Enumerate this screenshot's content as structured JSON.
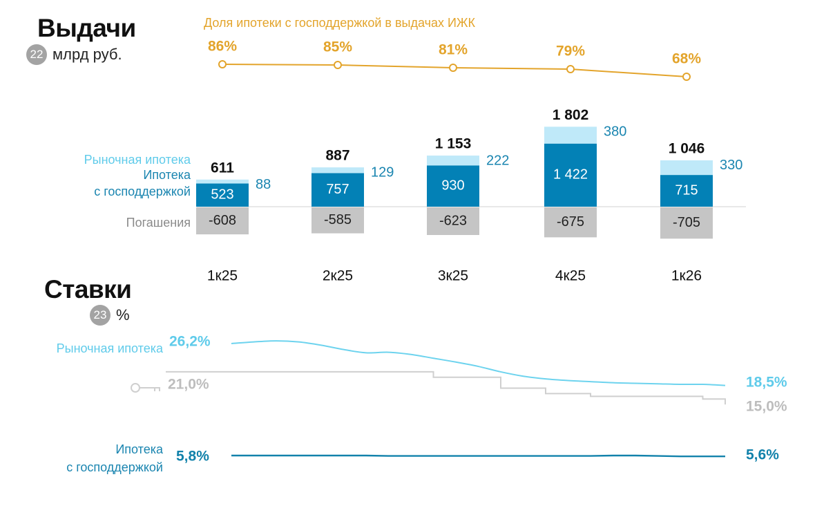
{
  "issuance": {
    "title": "Выдачи",
    "badge": "22",
    "unit": "млрд руб."
  },
  "rates": {
    "title": "Ставки",
    "badge": "23",
    "unit": "%"
  },
  "colors": {
    "market": "#bfe9f9",
    "subsidized": "#0381b6",
    "repayment": "#c5c5c5",
    "share": "#e3a42b",
    "market_rate": "#6dd3ee",
    "key_rate": "#cfcfcf",
    "subsidized_rate": "#1282ab"
  },
  "icons": {
    "key_rate": "key-icon"
  },
  "chart_data": [
    {
      "type": "bar",
      "stacked": true,
      "title": "",
      "categories": [
        "1к25",
        "2к25",
        "3к25",
        "4к25",
        "1к26"
      ],
      "series": [
        {
          "name": "Ипотека с господдержкой",
          "values": [
            523,
            757,
            930,
            1422,
            715
          ],
          "labels": [
            "523",
            "757",
            "930",
            "1 422",
            "715"
          ]
        },
        {
          "name": "Рыночная ипотека",
          "values": [
            88,
            129,
            222,
            380,
            330
          ],
          "labels": [
            "88",
            "129",
            "222",
            "380",
            "330"
          ]
        },
        {
          "name": "Погашения",
          "values": [
            -608,
            -585,
            -623,
            -675,
            -705
          ],
          "labels": [
            "-608",
            "-585",
            "-623",
            "-675",
            "-705"
          ]
        }
      ],
      "totals": [
        611,
        887,
        1153,
        1802,
        1046
      ],
      "total_labels": [
        "611",
        "887",
        "1 153",
        "1 802",
        "1 046"
      ],
      "legend_labels": {
        "market": "Рыночная ипотека",
        "subsidized_line1": "Ипотека",
        "subsidized_line2": "с господдержкой",
        "repayment": "Погашения"
      }
    },
    {
      "type": "line",
      "title": "Доля ипотеки с господдержкой в выдачах ИЖК",
      "categories": [
        "1к25",
        "2к25",
        "3к25",
        "4к25",
        "1к26"
      ],
      "series": [
        {
          "name": "Доля ипотеки с господдержкой в выдачах ИЖК",
          "values": [
            86,
            85,
            81,
            79,
            68
          ],
          "labels": [
            "86%",
            "85%",
            "81%",
            "79%",
            "68%"
          ]
        }
      ]
    },
    {
      "type": "line",
      "title": "",
      "x_range": [
        "1к25",
        "1к26"
      ],
      "series": [
        {
          "name": "Рыночная ипотека",
          "values": [
            26.2,
            26.5,
            26.7,
            26.5,
            25.9,
            25.1,
            24.5,
            24.6,
            24.2,
            23.5,
            22.8,
            22.0,
            21.0,
            20.2,
            19.7,
            19.4,
            19.2,
            19.0,
            18.9,
            18.8,
            18.7,
            18.7,
            18.5
          ],
          "start_label": "26,2%",
          "end_label": "18,5%"
        },
        {
          "name": "Ключевая ставка",
          "values": [
            21.0,
            21.0,
            21.0,
            21.0,
            21.0,
            21.0,
            21.0,
            21.0,
            21.0,
            20.0,
            20.0,
            20.0,
            18.0,
            18.0,
            17.0,
            17.0,
            16.5,
            16.5,
            16.5,
            16.5,
            16.5,
            16.0,
            15.0
          ],
          "start_label": "21,0%",
          "end_label": "15,0%"
        },
        {
          "name": "Ипотека с господдержкой",
          "values": [
            5.8,
            5.8,
            5.8,
            5.8,
            5.8,
            5.8,
            5.8,
            5.7,
            5.7,
            5.7,
            5.7,
            5.7,
            5.7,
            5.7,
            5.7,
            5.7,
            5.7,
            5.8,
            5.8,
            5.7,
            5.6,
            5.6,
            5.6
          ],
          "start_label": "5,8%",
          "end_label": "5,6%",
          "label_line1": "Ипотека",
          "label_line2": "с господдержкой"
        }
      ]
    }
  ]
}
